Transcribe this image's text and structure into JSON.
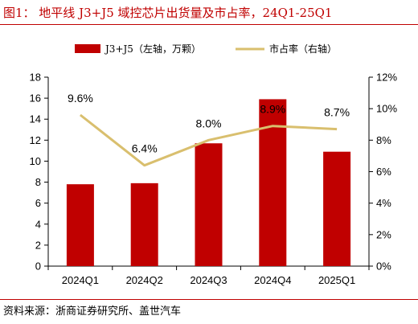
{
  "figure": {
    "title": "图1：  地平线 J3+J5 域控芯片出货量及市占率，24Q1-25Q1",
    "source": "资料来源：浙商证券研究所、盖世汽车"
  },
  "colors": {
    "bar": "#c00000",
    "line": "#d9bf6e",
    "rule": "#c00000",
    "axis": "#000000"
  },
  "chart_data": {
    "type": "bar",
    "title": "",
    "xlabel": "",
    "ylabel": "",
    "categories": [
      "2024Q1",
      "2024Q2",
      "2024Q3",
      "2024Q4",
      "2025Q1"
    ],
    "series": [
      {
        "name": "J3+J5（左轴，万颗）",
        "type": "bar",
        "axis": "left",
        "values": [
          7.8,
          7.9,
          11.7,
          15.9,
          10.9
        ]
      },
      {
        "name": "市占率（右轴）",
        "type": "line",
        "axis": "right",
        "values": [
          9.6,
          6.4,
          8.0,
          8.9,
          8.7
        ],
        "labels": [
          "9.6%",
          "6.4%",
          "8.0%",
          "8.9%",
          "8.7%"
        ]
      }
    ],
    "ylim_left": [
      0,
      18
    ],
    "yticks_left": [
      "0",
      "2",
      "4",
      "6",
      "8",
      "10",
      "12",
      "14",
      "16",
      "18"
    ],
    "ylim_right": [
      0,
      12
    ],
    "yticks_right": [
      "0%",
      "2%",
      "4%",
      "6%",
      "8%",
      "10%",
      "12%"
    ],
    "grid": false,
    "legend_position": "top"
  }
}
